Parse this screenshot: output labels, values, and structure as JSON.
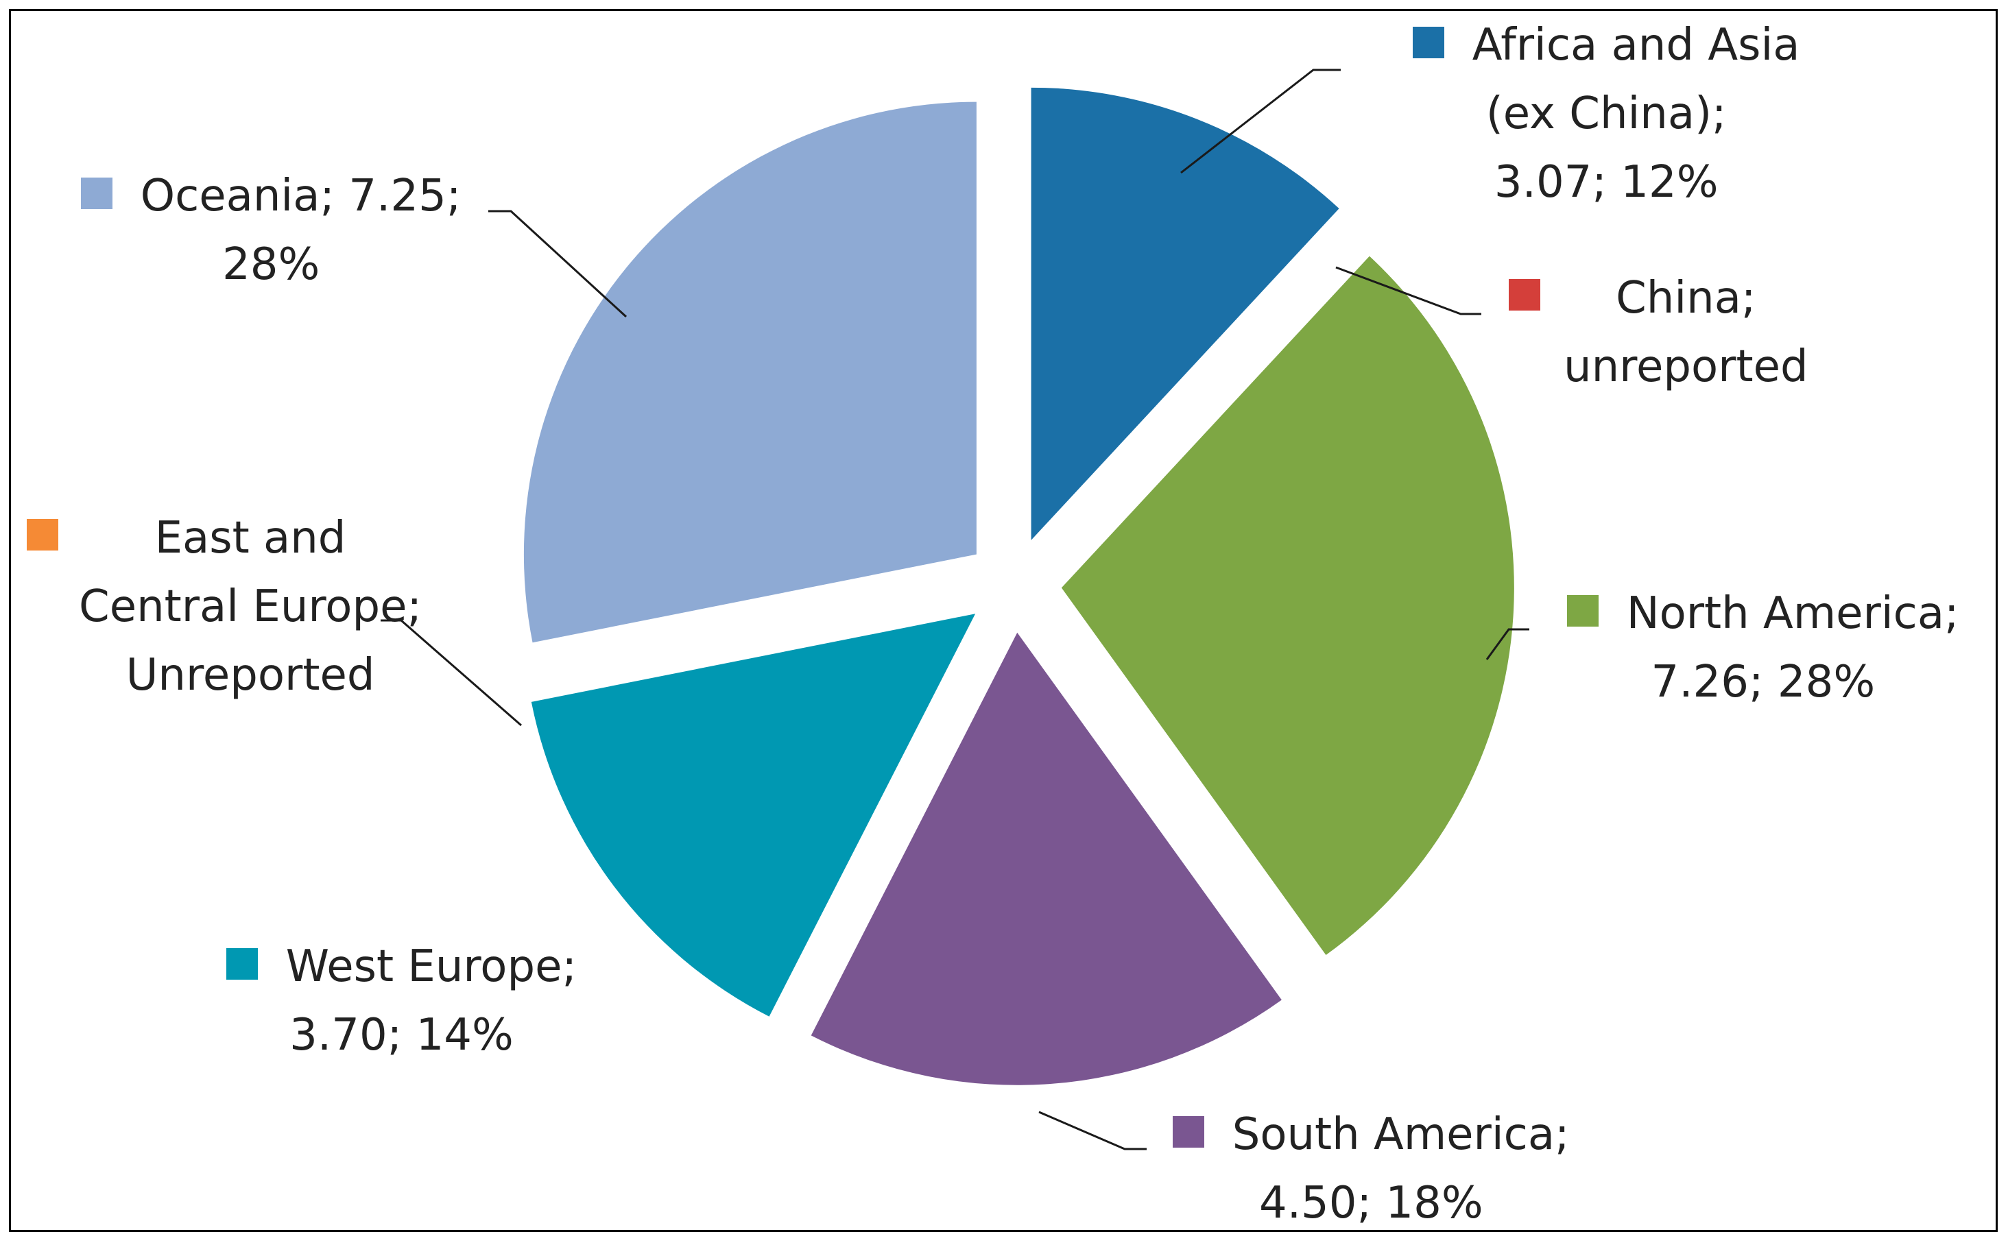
{
  "chart_data": {
    "type": "pie",
    "exploded": true,
    "slices": [
      {
        "name": "Africa and Asia (ex China)",
        "value": 3.07,
        "percent": "12%",
        "color": "#1b70a7",
        "label_lines": [
          "Africa and Asia",
          "(ex China);",
          "3.07; 12%"
        ]
      },
      {
        "name": "China",
        "value": null,
        "percent": null,
        "color": "#d43f3a",
        "label_lines": [
          "China;",
          "unreported"
        ]
      },
      {
        "name": "North America",
        "value": 7.26,
        "percent": "28%",
        "color": "#7ea744",
        "label_lines": [
          "North America;",
          "7.26; 28%"
        ]
      },
      {
        "name": "South America",
        "value": 4.5,
        "percent": "18%",
        "color": "#7a5691",
        "label_lines": [
          "South America;",
          "4.50; 18%"
        ]
      },
      {
        "name": "West Europe",
        "value": 3.7,
        "percent": "14%",
        "color": "#0098b2",
        "label_lines": [
          "West Europe;",
          "3.70; 14%"
        ]
      },
      {
        "name": "East and Central Europe",
        "value": null,
        "percent": null,
        "color": "#f58a35",
        "label_lines": [
          "East and",
          "Central Europe;",
          "Unreported"
        ]
      },
      {
        "name": "Oceania",
        "value": 7.25,
        "percent": "28%",
        "color": "#8eaad4",
        "label_lines": [
          "Oceania; 7.25;",
          "28%"
        ]
      }
    ]
  }
}
